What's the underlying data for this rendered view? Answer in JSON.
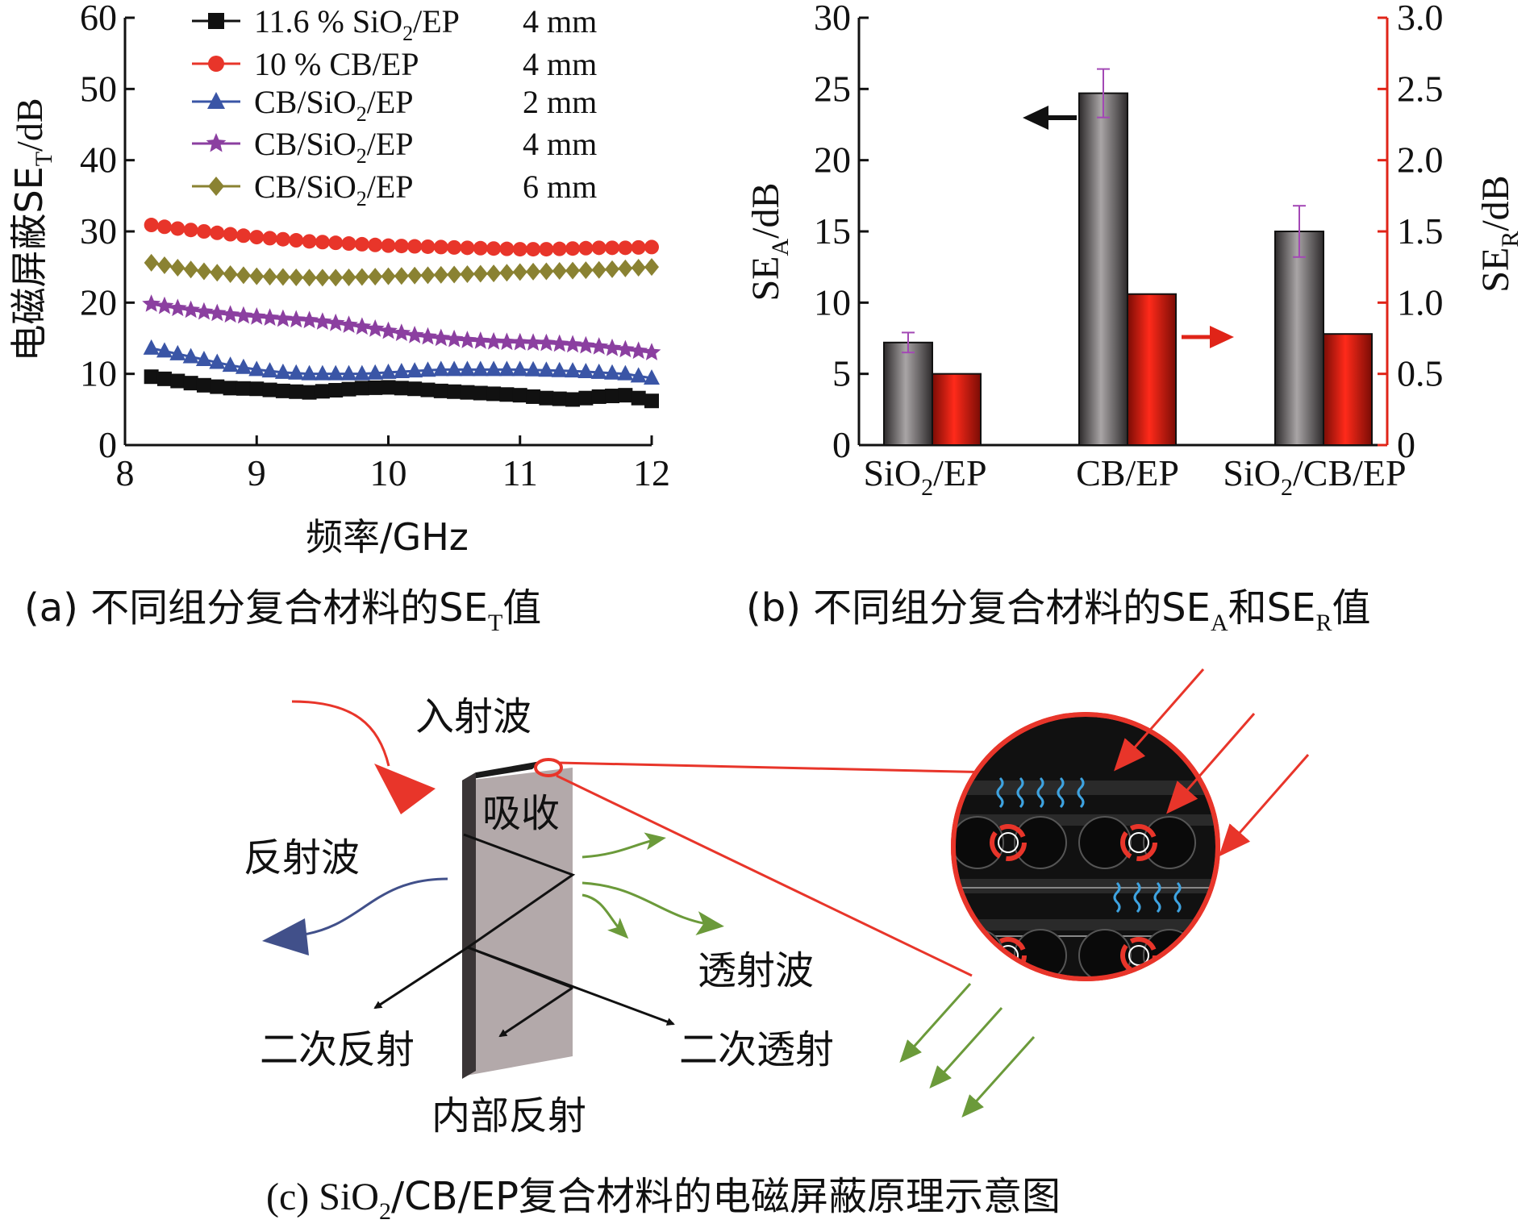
{
  "panel_a": {
    "caption": "(a) 不同组分复合材料的SE",
    "caption_sub": "T",
    "caption_end": "值",
    "ylabel": "电磁屏蔽SE",
    "ylabel_sub": "T",
    "ylabel_end": "/dB",
    "xlabel": "频率/GHz"
  },
  "panel_b": {
    "caption": "(b) 不同组分复合材料的SE",
    "caption_sub1": "A",
    "caption_mid": "和SE",
    "caption_sub2": "R",
    "caption_end": "值",
    "ylabel_left": "SE",
    "ylabel_left_sub": "A",
    "ylabel_left_end": "/dB",
    "ylabel_right": "SE",
    "ylabel_right_sub": "R",
    "ylabel_right_end": "/dB",
    "categories": [
      {
        "main": "SiO",
        "sub": "2",
        "end": "/EP"
      },
      {
        "main": "CB/EP",
        "sub": "",
        "end": ""
      },
      {
        "main": "SiO",
        "sub": "2",
        "end": "/CB/EP"
      }
    ]
  },
  "panel_c": {
    "caption": "(c) SiO",
    "caption_sub": "2",
    "caption_end": "/CB/EP复合材料的电磁屏蔽原理示意图",
    "labels": {
      "incident": "入射波",
      "absorb": "吸收",
      "reflect": "反射波",
      "transmit": "透射波",
      "secondary_reflect": "二次反射",
      "secondary_transmit": "二次透射",
      "internal_reflect": "内部反射"
    },
    "colors": {
      "incident": "#e8352a",
      "reflect": "#41508a",
      "transmit": "#6b9a3a",
      "absorb_wave": "#3ea3e0"
    }
  },
  "chart_data": [
    {
      "type": "line",
      "xlim": [
        8,
        12
      ],
      "ylim": [
        0,
        60
      ],
      "xticks": [
        "8",
        "9",
        "10",
        "11",
        "12"
      ],
      "yticks": [
        "0",
        "10",
        "20",
        "30",
        "40",
        "50",
        "60"
      ],
      "legend_position": "top",
      "series": [
        {
          "name": "11.6 % SiO2/EP",
          "name_main": "11.6 % SiO",
          "name_sub": "2",
          "name_end": "/EP",
          "thickness": "4 mm",
          "color": "#111111",
          "marker": "square",
          "x": [
            8.2,
            8.4,
            8.6,
            8.8,
            9.0,
            9.2,
            9.4,
            9.6,
            9.8,
            10.0,
            10.2,
            10.4,
            10.6,
            10.8,
            11.0,
            11.2,
            11.4,
            11.6,
            11.8,
            12.0
          ],
          "y": [
            9.6,
            9.0,
            8.4,
            8.0,
            7.9,
            7.6,
            7.4,
            7.7,
            8.0,
            8.1,
            7.9,
            7.6,
            7.4,
            7.2,
            7.0,
            6.6,
            6.4,
            6.8,
            7.0,
            6.2
          ]
        },
        {
          "name": "10 % CB/EP",
          "name_main": "10 % CB/EP",
          "name_sub": "",
          "name_end": "",
          "thickness": "4 mm",
          "color": "#e8352a",
          "marker": "circle",
          "x": [
            8.2,
            8.4,
            8.6,
            8.8,
            9.0,
            9.2,
            9.4,
            9.6,
            9.8,
            10.0,
            10.2,
            10.4,
            10.6,
            10.8,
            11.0,
            11.2,
            11.4,
            11.6,
            11.8,
            12.0
          ],
          "y": [
            30.9,
            30.4,
            30.0,
            29.6,
            29.2,
            28.9,
            28.6,
            28.4,
            28.2,
            28.0,
            27.9,
            27.8,
            27.7,
            27.6,
            27.5,
            27.5,
            27.6,
            27.7,
            27.7,
            27.8
          ]
        },
        {
          "name": "CB/SiO2/EP",
          "name_main": "CB/SiO",
          "name_sub": "2",
          "name_end": "/EP",
          "thickness": "2 mm",
          "color": "#3a55a6",
          "marker": "triangle",
          "x": [
            8.2,
            8.4,
            8.6,
            8.8,
            9.0,
            9.2,
            9.4,
            9.6,
            9.8,
            10.0,
            10.2,
            10.4,
            10.6,
            10.8,
            11.0,
            11.2,
            11.4,
            11.6,
            11.8,
            12.0
          ],
          "y": [
            13.6,
            12.8,
            12.0,
            11.2,
            10.6,
            10.2,
            10.0,
            10.0,
            10.0,
            10.2,
            10.4,
            10.6,
            10.6,
            10.6,
            10.6,
            10.5,
            10.4,
            10.2,
            10.0,
            9.4
          ]
        },
        {
          "name": "CB/SiO2/EP",
          "name_main": "CB/SiO",
          "name_sub": "2",
          "name_end": "/EP",
          "thickness": "4 mm",
          "color": "#8b3fa0",
          "marker": "star",
          "x": [
            8.2,
            8.4,
            8.6,
            8.8,
            9.0,
            9.2,
            9.4,
            9.6,
            9.8,
            10.0,
            10.2,
            10.4,
            10.6,
            10.8,
            11.0,
            11.2,
            11.4,
            11.6,
            11.8,
            12.0
          ],
          "y": [
            19.8,
            19.2,
            18.7,
            18.3,
            18.0,
            17.7,
            17.5,
            17.1,
            16.6,
            16.0,
            15.4,
            15.0,
            14.7,
            14.5,
            14.4,
            14.3,
            14.1,
            13.8,
            13.4,
            13.0
          ]
        },
        {
          "name": "CB/SiO2/EP",
          "name_main": "CB/SiO",
          "name_sub": "2",
          "name_end": "/EP",
          "thickness": "6 mm",
          "color": "#8a8232",
          "marker": "diamond",
          "x": [
            8.2,
            8.4,
            8.6,
            8.8,
            9.0,
            9.2,
            9.4,
            9.6,
            9.8,
            10.0,
            10.2,
            10.4,
            10.6,
            10.8,
            11.0,
            11.2,
            11.4,
            11.6,
            11.8,
            12.0
          ],
          "y": [
            25.6,
            24.9,
            24.4,
            24.0,
            23.7,
            23.6,
            23.5,
            23.5,
            23.6,
            23.7,
            23.8,
            23.9,
            24.0,
            24.1,
            24.3,
            24.4,
            24.5,
            24.6,
            24.8,
            25.0
          ]
        }
      ]
    },
    {
      "type": "bar",
      "categories": [
        "SiO2/EP",
        "CB/EP",
        "SiO2/CB/EP"
      ],
      "ylim_left": [
        0,
        30
      ],
      "ylim_right": [
        0,
        3.0
      ],
      "yticks_left": [
        "0",
        "5",
        "10",
        "15",
        "20",
        "25",
        "30"
      ],
      "yticks_right": [
        "0",
        "0.5",
        "1.0",
        "1.5",
        "2.0",
        "2.5",
        "3.0"
      ],
      "series": [
        {
          "axis": "left",
          "color": "#7a7576",
          "values": [
            7.2,
            24.7,
            15.0
          ],
          "errors": [
            0.7,
            1.7,
            1.8
          ]
        },
        {
          "axis": "right",
          "color": "#e02418",
          "values": [
            0.5,
            1.06,
            0.78
          ]
        }
      ]
    }
  ]
}
